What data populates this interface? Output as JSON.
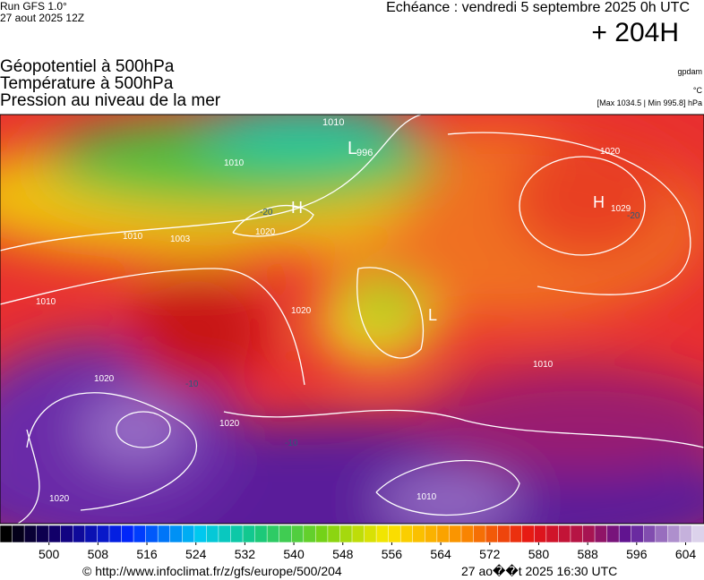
{
  "header": {
    "run": "Run GFS 1.0°",
    "run_date": "27 aout 2025 12Z",
    "valid_time": "Echéance : vendredi 5 septembre 2025 0h UTC",
    "lead": "+ 204H",
    "fields": [
      "Géopotentiel à 500hPa",
      "Température à 500hPa",
      "Pression au niveau de la mer"
    ],
    "units": [
      "gpdam",
      "°C",
      "[Max 1034.5 | Min 995.8] hPa"
    ]
  },
  "map": {
    "labels": [
      "1010",
      "996",
      "L",
      "1010",
      "H",
      "-20",
      "1020",
      "1010",
      "1003",
      "H",
      "1029",
      "1020",
      "-20",
      "1020",
      "1010",
      "L",
      "1020",
      "1020",
      "-10",
      "1010",
      "1010",
      "1020",
      "-10"
    ]
  },
  "colorbar": {
    "lim": [
      492,
      607
    ],
    "ticks": [
      500,
      508,
      516,
      524,
      532,
      540,
      548,
      556,
      564,
      572,
      580,
      588,
      596,
      604
    ]
  },
  "footer": {
    "source": "© http://www.infoclimat.fr/z/gfs/europe/500/204",
    "created": "27 ao��t 2025 16:30 UTC"
  }
}
